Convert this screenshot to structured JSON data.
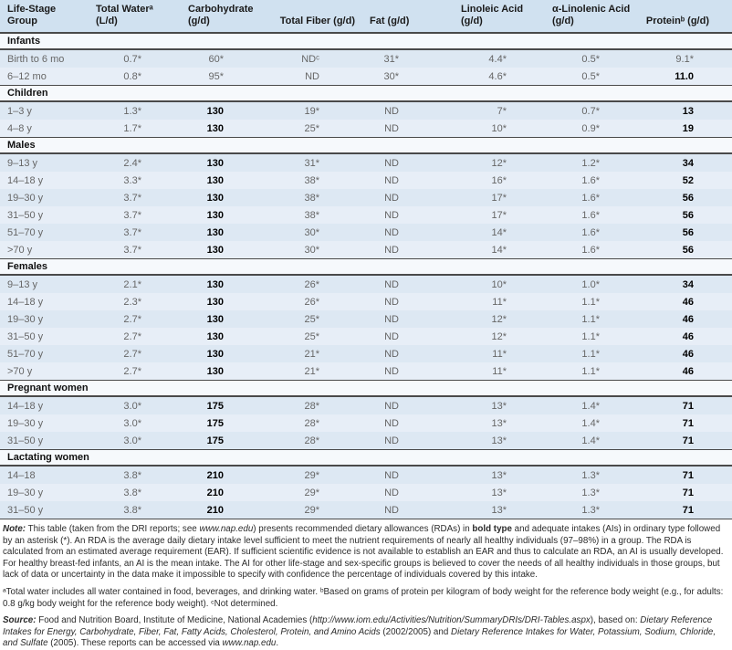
{
  "colors": {
    "header_bg": "#d0e1f0",
    "row_dark": "#dde8f3",
    "row_light": "#e7eef7",
    "section_bg": "#f6f9fc",
    "rule": "#4a4a4a"
  },
  "table": {
    "columns": [
      "Life-Stage Group",
      "Total Waterᵃ\n(L/d)",
      "Carbohydrate\n(g/d)",
      "Total Fiber (g/d)",
      "Fat (g/d)",
      "Linoleic Acid\n(g/d)",
      "α-Linolenic Acid\n(g/d)",
      "Proteinᵇ (g/d)"
    ],
    "sections": [
      {
        "name": "Infants",
        "rows": [
          {
            "group": "Birth to 6 mo",
            "values": [
              "0.7*",
              "60*",
              "NDᶜ",
              "31*",
              "4.4*",
              "0.5*",
              "9.1*"
            ]
          },
          {
            "group": "6–12 mo",
            "values": [
              "0.8*",
              "95*",
              "ND",
              "30*",
              "4.6*",
              "0.5*",
              "11.0"
            ]
          }
        ]
      },
      {
        "name": "Children",
        "rows": [
          {
            "group": "1–3 y",
            "values": [
              "1.3*",
              "130",
              "19*",
              "ND",
              "7*",
              "0.7*",
              "13"
            ]
          },
          {
            "group": "4–8 y",
            "values": [
              "1.7*",
              "130",
              "25*",
              "ND",
              "10*",
              "0.9*",
              "19"
            ]
          }
        ]
      },
      {
        "name": "Males",
        "rows": [
          {
            "group": "9–13 y",
            "values": [
              "2.4*",
              "130",
              "31*",
              "ND",
              "12*",
              "1.2*",
              "34"
            ]
          },
          {
            "group": "14–18 y",
            "values": [
              "3.3*",
              "130",
              "38*",
              "ND",
              "16*",
              "1.6*",
              "52"
            ]
          },
          {
            "group": "19–30 y",
            "values": [
              "3.7*",
              "130",
              "38*",
              "ND",
              "17*",
              "1.6*",
              "56"
            ]
          },
          {
            "group": "31–50 y",
            "values": [
              "3.7*",
              "130",
              "38*",
              "ND",
              "17*",
              "1.6*",
              "56"
            ]
          },
          {
            "group": "51–70 y",
            "values": [
              "3.7*",
              "130",
              "30*",
              "ND",
              "14*",
              "1.6*",
              "56"
            ]
          },
          {
            "group": ">70 y",
            "values": [
              "3.7*",
              "130",
              "30*",
              "ND",
              "14*",
              "1.6*",
              "56"
            ]
          }
        ]
      },
      {
        "name": "Females",
        "rows": [
          {
            "group": "9–13 y",
            "values": [
              "2.1*",
              "130",
              "26*",
              "ND",
              "10*",
              "1.0*",
              "34"
            ]
          },
          {
            "group": "14–18 y",
            "values": [
              "2.3*",
              "130",
              "26*",
              "ND",
              "11*",
              "1.1*",
              "46"
            ]
          },
          {
            "group": "19–30 y",
            "values": [
              "2.7*",
              "130",
              "25*",
              "ND",
              "12*",
              "1.1*",
              "46"
            ]
          },
          {
            "group": "31–50 y",
            "values": [
              "2.7*",
              "130",
              "25*",
              "ND",
              "12*",
              "1.1*",
              "46"
            ]
          },
          {
            "group": "51–70 y",
            "values": [
              "2.7*",
              "130",
              "21*",
              "ND",
              "11*",
              "1.1*",
              "46"
            ]
          },
          {
            "group": ">70 y",
            "values": [
              "2.7*",
              "130",
              "21*",
              "ND",
              "11*",
              "1.1*",
              "46"
            ]
          }
        ]
      },
      {
        "name": "Pregnant women",
        "rows": [
          {
            "group": "14–18 y",
            "values": [
              "3.0*",
              "175",
              "28*",
              "ND",
              "13*",
              "1.4*",
              "71"
            ]
          },
          {
            "group": "19–30 y",
            "values": [
              "3.0*",
              "175",
              "28*",
              "ND",
              "13*",
              "1.4*",
              "71"
            ]
          },
          {
            "group": "31–50 y",
            "values": [
              "3.0*",
              "175",
              "28*",
              "ND",
              "13*",
              "1.4*",
              "71"
            ]
          }
        ]
      },
      {
        "name": "Lactating women",
        "rows": [
          {
            "group": "14–18",
            "values": [
              "3.8*",
              "210",
              "29*",
              "ND",
              "13*",
              "1.3*",
              "71"
            ]
          },
          {
            "group": "19–30 y",
            "values": [
              "3.8*",
              "210",
              "29*",
              "ND",
              "13*",
              "1.3*",
              "71"
            ]
          },
          {
            "group": "31–50 y",
            "values": [
              "3.8*",
              "210",
              "29*",
              "ND",
              "13*",
              "1.3*",
              "71"
            ]
          }
        ]
      }
    ]
  },
  "note": {
    "segments": [
      {
        "t": "Note:",
        "s": "bi"
      },
      {
        "t": " This table (taken from the DRI reports; see ",
        "s": ""
      },
      {
        "t": "www.nap.edu",
        "s": "i"
      },
      {
        "t": ") presents recommended dietary allowances (RDAs) in ",
        "s": ""
      },
      {
        "t": "bold type",
        "s": "b"
      },
      {
        "t": " and adequate intakes (AIs) in ordinary type followed by an asterisk (*). An RDA is the average daily dietary intake level sufficient to meet the nutrient requirements of nearly all healthy individuals (97–98%) in a group. The RDA is calculated from an estimated average requirement (EAR). If sufficient scientific evidence is not available to establish an EAR and thus to calculate an RDA, an AI is usually developed. For healthy breast-fed infants, an AI is the mean intake. The AI for other life-stage and sex-specific groups is believed to cover the needs of all healthy individuals in those groups, but lack of data or uncertainty in the data make it impossible to specify with confidence the percentage of individuals covered by this intake.",
        "s": ""
      }
    ]
  },
  "footnotes": {
    "segments": [
      {
        "t": "ᵃTotal water includes all water contained in food, beverages, and drinking water.  ᵇBased on grams of protein per kilogram of body weight for the reference body weight (e.g., for adults: 0.8 g/kg body weight for the reference body weight).  ᶜNot determined.",
        "s": ""
      }
    ]
  },
  "source": {
    "segments": [
      {
        "t": "Source:",
        "s": "bi"
      },
      {
        "t": " Food and Nutrition Board, Institute of Medicine, National Academies (",
        "s": ""
      },
      {
        "t": "http://www.iom.edu/Activities/Nutrition/SummaryDRIs/DRI-Tables.aspx",
        "s": "i"
      },
      {
        "t": "), based on: ",
        "s": ""
      },
      {
        "t": "Dietary Reference Intakes for Energy, Carbohydrate, Fiber, Fat, Fatty Acids, Cholesterol, Protein, and Amino Acids",
        "s": "i"
      },
      {
        "t": " (2002/2005) and ",
        "s": ""
      },
      {
        "t": "Dietary Reference Intakes for Water, Potassium, Sodium, Chloride, and Sulfate",
        "s": "i"
      },
      {
        "t": " (2005). These reports can be accessed via ",
        "s": ""
      },
      {
        "t": "www.nap.edu",
        "s": "i"
      },
      {
        "t": ".",
        "s": ""
      }
    ]
  }
}
